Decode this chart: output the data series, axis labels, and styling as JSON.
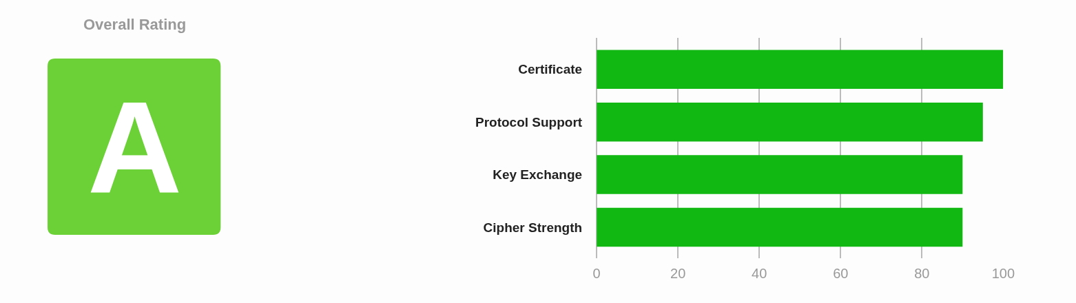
{
  "chart_data": [
    {
      "type": "other",
      "title": "Overall Rating",
      "annotations": [
        "A"
      ],
      "color": "#6cd136"
    },
    {
      "type": "bar",
      "orientation": "horizontal",
      "categories": [
        "Certificate",
        "Protocol Support",
        "Key Exchange",
        "Cipher Strength"
      ],
      "values": [
        100,
        95,
        90,
        90
      ],
      "color": "#12b812",
      "xlim": [
        0,
        100
      ],
      "xticks": [
        0,
        20,
        40,
        60,
        80,
        100
      ],
      "grid": "x"
    }
  ]
}
